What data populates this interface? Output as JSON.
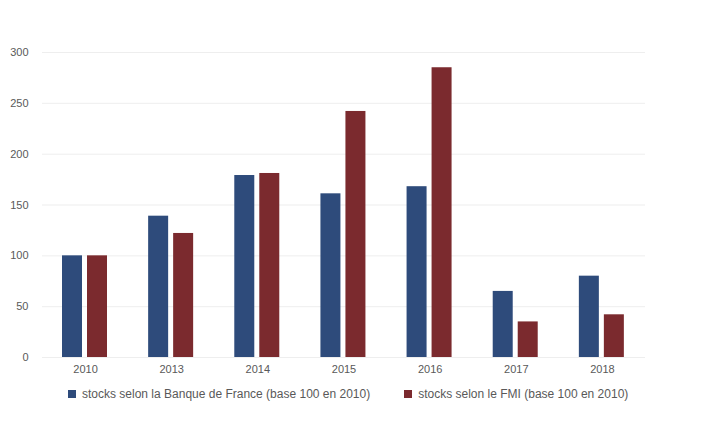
{
  "chart_data": {
    "type": "bar",
    "categories": [
      "2010",
      "2013",
      "2014",
      "2015",
      "2016",
      "2017",
      "2018"
    ],
    "series": [
      {
        "name": "stocks selon la Banque de France (base 100 en 2010)",
        "color": "#2e4b7b",
        "values": [
          100,
          139,
          179,
          161,
          168,
          65,
          80
        ]
      },
      {
        "name": "stocks selon le FMI (base 100 en 2010)",
        "color": "#7b2a2e",
        "values": [
          100,
          122,
          181,
          242,
          285,
          35,
          42
        ]
      }
    ],
    "ylim": [
      0,
      300
    ],
    "yticks": [
      0,
      50,
      100,
      150,
      200,
      250,
      300
    ],
    "grid": true,
    "legend": "bottom"
  }
}
